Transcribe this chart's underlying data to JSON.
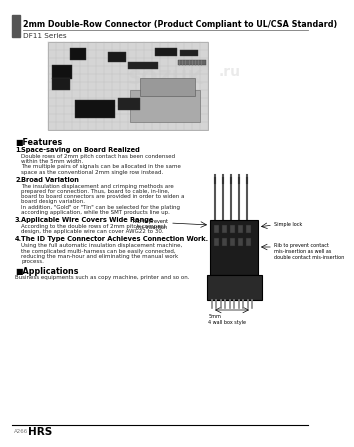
{
  "title": "2mm Double-Row Connector (Product Compliant to UL/CSA Standard)",
  "series_label": "DF11 Series",
  "bg_color": "#ffffff",
  "header_bar_color": "#555555",
  "title_color": "#000000",
  "title_fontsize": 5.8,
  "series_fontsize": 5.2,
  "features_title": "■Features",
  "feature_items": [
    {
      "num": "1.",
      "title": "Space-saving on Board Realized",
      "body": "Double rows of 2mm pitch contact has been condensed\nwithin the 5mm width.\nThe multiple pairs of signals can be allocated in the same\nspace as the conventional 2mm single row instead."
    },
    {
      "num": "2.",
      "title": "Broad Variation",
      "body": "The insulation displacement and crimping methods are\nprepared for connection. Thus, board to cable, in-line,\nboard to board connectors are provided in order to widen a\nboard design variation.\nIn addition, \"Gold\" or \"Tin\" can be selected for the plating\naccording application, while the SMT products line up."
    },
    {
      "num": "3.",
      "title": "Applicable Wire Covers Wide Range",
      "body": "According to the double rows of 2mm pitch compact\ndesign, the applicable wire can cover AWG22 to 30."
    },
    {
      "num": "4.",
      "title": "The ID Type Connector Achieves Connection Work.",
      "body": "Using the full automatic insulation displacement machine,\nthe complicated multi-harness can be easily connected,\nreducing the man-hour and eliminating the manual work\nprocess."
    }
  ],
  "applications_title": "■Applications",
  "applications_body": "Business equipments such as copy machine, printer and so on.",
  "footer_page": "A266",
  "footer_brand": "HRS",
  "right_diagram_labels": [
    "Rib to prevent\nmis-insertion",
    "Simple lock",
    "Rib to prevent contact\nmis-insertion as well as\ndouble contact mis-insertion"
  ],
  "bottom_diagram_labels": [
    "5mm",
    "4 wall box style"
  ]
}
